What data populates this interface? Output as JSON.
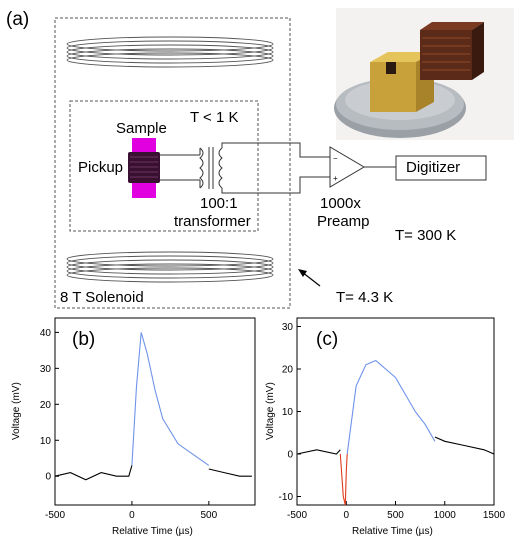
{
  "figure": {
    "panel_labels": [
      "(a)",
      "(b)",
      "(c)"
    ]
  },
  "schematic": {
    "labels": {
      "sample": "Sample",
      "pickup": "Pickup",
      "low_temp_stage": "T < 1 K",
      "transformer_ratio": "100:1",
      "transformer": "transformer",
      "preamp_gain": "1000x",
      "preamp": "Preamp",
      "digitizer": "Digitizer",
      "room_temp": "T= 300 K",
      "helium_temp": "T= 4.3 K",
      "solenoid": "8 T Solenoid"
    },
    "colors": {
      "sample": "#e000e0",
      "pickup_coil": "#3a1030"
    },
    "photo_icon": "photo-of-sample-holder-on-coin"
  },
  "chart_data": [
    {
      "type": "line",
      "panel": "(b)",
      "xlabel": "Relative Time (µs)",
      "ylabel": "Voltage (mV)",
      "xlim": [
        -500,
        800
      ],
      "ylim": [
        -8,
        44
      ],
      "xticks": [
        -500,
        0,
        500
      ],
      "yticks": [
        0,
        10,
        20,
        30,
        40
      ],
      "series": [
        {
          "color": "#000000",
          "x": [
            -500,
            -400,
            -300,
            -200,
            -100,
            -20,
            0
          ],
          "y": [
            0,
            1,
            -1,
            1,
            0,
            0,
            3
          ]
        },
        {
          "color": "#6f93ea",
          "x": [
            0,
            30,
            60,
            100,
            150,
            200,
            300,
            400,
            500
          ],
          "y": [
            3,
            25,
            40,
            34,
            24,
            16,
            9,
            6,
            3
          ]
        },
        {
          "color": "#000000",
          "x": [
            500,
            600,
            700,
            780
          ],
          "y": [
            2,
            1,
            0,
            0
          ]
        }
      ]
    },
    {
      "type": "line",
      "panel": "(c)",
      "xlabel": "Relative Time (µs)",
      "ylabel": "Voltage (mV)",
      "xlim": [
        -500,
        1500
      ],
      "ylim": [
        -12,
        32
      ],
      "xticks": [
        -500,
        0,
        500,
        1000,
        1500
      ],
      "yticks": [
        -10,
        0,
        10,
        20,
        30
      ],
      "series": [
        {
          "color": "#000000",
          "x": [
            -500,
            -300,
            -100,
            -60
          ],
          "y": [
            0,
            1,
            0,
            1
          ]
        },
        {
          "color": "#e03b1a",
          "x": [
            -60,
            -30,
            -10,
            0,
            10
          ],
          "y": [
            0,
            -10,
            -12,
            -4,
            0
          ]
        },
        {
          "color": "#6f93ea",
          "x": [
            10,
            100,
            200,
            300,
            400,
            500,
            600,
            700,
            800,
            900
          ],
          "y": [
            0,
            16,
            21,
            22,
            20,
            18,
            14,
            10,
            7,
            3
          ]
        },
        {
          "color": "#000000",
          "x": [
            900,
            1000,
            1200,
            1400,
            1500
          ],
          "y": [
            4,
            3,
            2,
            1,
            0
          ]
        }
      ]
    }
  ]
}
